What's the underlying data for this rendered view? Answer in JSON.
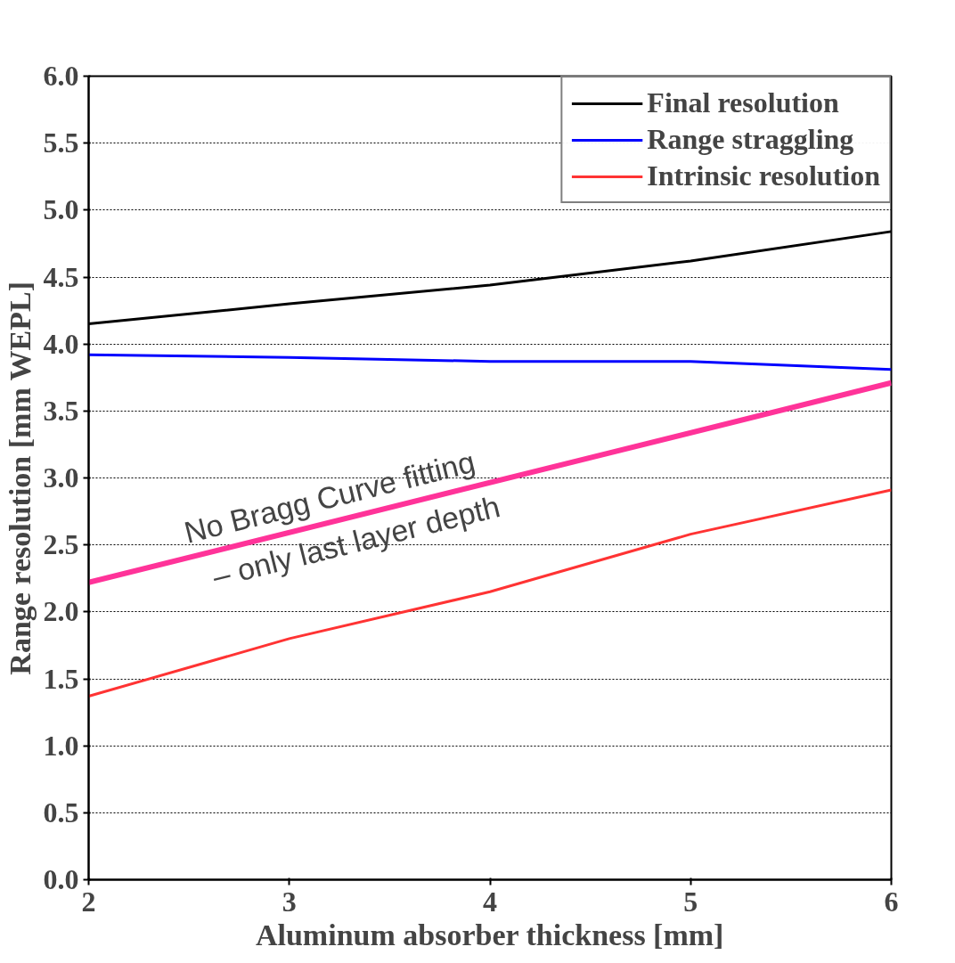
{
  "chart_data": {
    "type": "line",
    "xlabel": "Aluminum absorber thickness [mm]",
    "ylabel": "Range resolution [mm WEPL]",
    "x": [
      2,
      3,
      4,
      5,
      6
    ],
    "series": [
      {
        "name": "Final resolution",
        "color": "#000000",
        "values": [
          4.15,
          4.3,
          4.44,
          4.62,
          4.84
        ]
      },
      {
        "name": "Range straggling",
        "color": "#0000ff",
        "values": [
          3.92,
          3.9,
          3.87,
          3.87,
          3.81
        ]
      },
      {
        "name": "Intrinsic resolution",
        "color": "#ff3333",
        "values": [
          1.37,
          1.8,
          2.15,
          2.58,
          2.91
        ]
      },
      {
        "color": "#ff3399",
        "x": [
          2,
          6
        ],
        "values": [
          2.22,
          3.71
        ]
      }
    ],
    "annotations": [
      "No Bragg Curve fitting",
      "– only last layer depth"
    ],
    "xlim": [
      2,
      6
    ],
    "ylim": [
      0,
      6
    ],
    "xticks": [
      2,
      3,
      4,
      5,
      6
    ],
    "yticks": [
      {
        "value": 0,
        "label": "0.0"
      },
      {
        "value": 0.5,
        "label": "0.5"
      },
      {
        "value": 1,
        "label": "1.0"
      },
      {
        "value": 1.5,
        "label": "1.5"
      },
      {
        "value": 2,
        "label": "2.0"
      },
      {
        "value": 2.5,
        "label": "2.5"
      },
      {
        "value": 3,
        "label": "3.0"
      },
      {
        "value": 3.5,
        "label": "3.5"
      },
      {
        "value": 4,
        "label": "4.0"
      },
      {
        "value": 4.5,
        "label": "4.5"
      },
      {
        "value": 5,
        "label": "5.0"
      },
      {
        "value": 5.5,
        "label": "5.5"
      },
      {
        "value": 6,
        "label": "6.0"
      }
    ],
    "grid": "y",
    "legend": "top right"
  }
}
